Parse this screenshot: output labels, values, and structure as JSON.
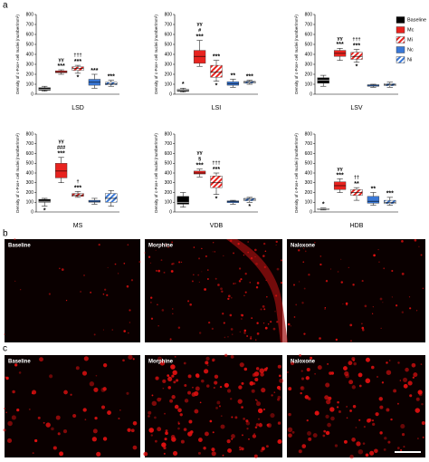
{
  "panel_labels": [
    "a",
    "b",
    "c"
  ],
  "legend": [
    {
      "name": "Baseline",
      "color": "#000000",
      "hatch": false
    },
    {
      "name": "Mc",
      "color": "#e8231f",
      "hatch": false
    },
    {
      "name": "Mi",
      "color": "#e8231f",
      "hatch": true
    },
    {
      "name": "Nc",
      "color": "#3a78d6",
      "hatch": false
    },
    {
      "name": "Ni",
      "color": "#3a78d6",
      "hatch": true
    }
  ],
  "chart_data": [
    {
      "type": "box",
      "title": "LSD",
      "y_label": "Density of c-Fos+ cell nuclei (number/mm²)",
      "ylim": [
        0,
        800
      ],
      "yticks": [
        0,
        100,
        200,
        300,
        400,
        500,
        600,
        700,
        800
      ],
      "boxes": [
        {
          "min": 30,
          "q1": 40,
          "median": 50,
          "q3": 65,
          "max": 80,
          "above": [],
          "below": []
        },
        {
          "min": 200,
          "q1": 215,
          "median": 225,
          "q3": 235,
          "max": 245,
          "above": [
            "γγ",
            "***"
          ],
          "below": []
        },
        {
          "min": 210,
          "q1": 240,
          "median": 260,
          "q3": 275,
          "max": 290,
          "above": [
            "†††",
            "***"
          ],
          "below": [
            "*"
          ]
        },
        {
          "min": 60,
          "q1": 90,
          "median": 120,
          "q3": 150,
          "max": 200,
          "above": [
            "***"
          ],
          "below": []
        },
        {
          "min": 80,
          "q1": 95,
          "median": 105,
          "q3": 120,
          "max": 140,
          "above": [
            "***"
          ],
          "below": []
        }
      ]
    },
    {
      "type": "box",
      "title": "LSI",
      "y_label": "Density of c-Fos+ cell nuclei (number/mm²)",
      "ylim": [
        0,
        800
      ],
      "yticks": [
        0,
        100,
        200,
        300,
        400,
        500,
        600,
        700,
        800
      ],
      "boxes": [
        {
          "min": 20,
          "q1": 30,
          "median": 40,
          "q3": 48,
          "max": 60,
          "above": [
            "*"
          ],
          "below": []
        },
        {
          "min": 280,
          "q1": 310,
          "median": 380,
          "q3": 440,
          "max": 540,
          "above": [
            "γγ",
            "#",
            "***"
          ],
          "below": []
        },
        {
          "min": 130,
          "q1": 170,
          "median": 220,
          "q3": 290,
          "max": 340,
          "above": [
            "***"
          ],
          "below": [
            "*"
          ]
        },
        {
          "min": 70,
          "q1": 90,
          "median": 105,
          "q3": 125,
          "max": 150,
          "above": [
            "**"
          ],
          "below": []
        },
        {
          "min": 100,
          "q1": 110,
          "median": 120,
          "q3": 130,
          "max": 140,
          "above": [
            "***"
          ],
          "below": []
        }
      ]
    },
    {
      "type": "box",
      "title": "LSV",
      "y_label": "Density of c-Fos+ cell nuclei (number/mm²)",
      "ylim": [
        0,
        800
      ],
      "yticks": [
        0,
        100,
        200,
        300,
        400,
        500,
        600,
        700,
        800
      ],
      "boxes": [
        {
          "min": 80,
          "q1": 110,
          "median": 140,
          "q3": 165,
          "max": 190,
          "above": [],
          "below": []
        },
        {
          "min": 340,
          "q1": 380,
          "median": 410,
          "q3": 440,
          "max": 460,
          "above": [
            "γγ",
            "***"
          ],
          "below": []
        },
        {
          "min": 320,
          "q1": 350,
          "median": 380,
          "q3": 420,
          "max": 450,
          "above": [
            "†††",
            "***"
          ],
          "below": [
            "*"
          ]
        },
        {
          "min": 70,
          "q1": 80,
          "median": 90,
          "q3": 95,
          "max": 100,
          "above": [],
          "below": []
        },
        {
          "min": 70,
          "q1": 85,
          "median": 95,
          "q3": 105,
          "max": 120,
          "above": [],
          "below": []
        }
      ]
    },
    {
      "type": "box",
      "title": "MS",
      "y_label": "Density of c-Fos+ cell nuclei (number/mm²)",
      "ylim": [
        0,
        800
      ],
      "yticks": [
        0,
        100,
        200,
        300,
        400,
        500,
        600,
        700,
        800
      ],
      "boxes": [
        {
          "min": 60,
          "q1": 100,
          "median": 110,
          "q3": 130,
          "max": 140,
          "above": [],
          "below": [
            "*"
          ]
        },
        {
          "min": 300,
          "q1": 350,
          "median": 420,
          "q3": 500,
          "max": 560,
          "above": [
            "γγ",
            "###",
            "***"
          ],
          "below": []
        },
        {
          "min": 150,
          "q1": 160,
          "median": 175,
          "q3": 190,
          "max": 210,
          "above": [
            "†",
            "***"
          ],
          "below": []
        },
        {
          "min": 80,
          "q1": 100,
          "median": 110,
          "q3": 120,
          "max": 140,
          "above": [],
          "below": []
        },
        {
          "min": 60,
          "q1": 100,
          "median": 140,
          "q3": 190,
          "max": 220,
          "above": [],
          "below": []
        }
      ]
    },
    {
      "type": "box",
      "title": "VDB",
      "y_label": "Density of c-Fos+ cell nuclei (number/mm²)",
      "ylim": [
        0,
        800
      ],
      "yticks": [
        0,
        100,
        200,
        300,
        400,
        500,
        600,
        700,
        800
      ],
      "boxes": [
        {
          "min": 50,
          "q1": 80,
          "median": 100,
          "q3": 160,
          "max": 200,
          "above": [],
          "below": []
        },
        {
          "min": 360,
          "q1": 390,
          "median": 400,
          "q3": 420,
          "max": 440,
          "above": [
            "γγ",
            "§",
            "***"
          ],
          "below": []
        },
        {
          "min": 180,
          "q1": 250,
          "median": 300,
          "q3": 370,
          "max": 400,
          "above": [
            "†††",
            "***"
          ],
          "below": [
            "*"
          ]
        },
        {
          "min": 80,
          "q1": 95,
          "median": 105,
          "q3": 115,
          "max": 120,
          "above": [],
          "below": []
        },
        {
          "min": 100,
          "q1": 115,
          "median": 130,
          "q3": 140,
          "max": 150,
          "above": [],
          "below": [
            "*"
          ]
        }
      ]
    },
    {
      "type": "box",
      "title": "HDB",
      "y_label": "Density of c-Fos+ cell nuclei (number/mm²)",
      "ylim": [
        0,
        800
      ],
      "yticks": [
        0,
        100,
        200,
        300,
        400,
        500,
        600,
        700,
        800
      ],
      "boxes": [
        {
          "min": 20,
          "q1": 25,
          "median": 30,
          "q3": 35,
          "max": 40,
          "above": [
            "*"
          ],
          "below": []
        },
        {
          "min": 200,
          "q1": 230,
          "median": 270,
          "q3": 310,
          "max": 340,
          "above": [
            "γγ",
            "***"
          ],
          "below": []
        },
        {
          "min": 120,
          "q1": 170,
          "median": 200,
          "q3": 230,
          "max": 250,
          "above": [
            "††",
            "**"
          ],
          "below": []
        },
        {
          "min": 70,
          "q1": 90,
          "median": 110,
          "q3": 160,
          "max": 200,
          "above": [
            "**"
          ],
          "below": []
        },
        {
          "min": 70,
          "q1": 85,
          "median": 100,
          "q3": 120,
          "max": 150,
          "above": [
            "***"
          ],
          "below": []
        }
      ]
    }
  ],
  "micrographs": {
    "b": [
      "Baseline",
      "Morphine",
      "Naloxone"
    ],
    "c": [
      "Baseline",
      "Morphine",
      "Naloxone"
    ]
  }
}
